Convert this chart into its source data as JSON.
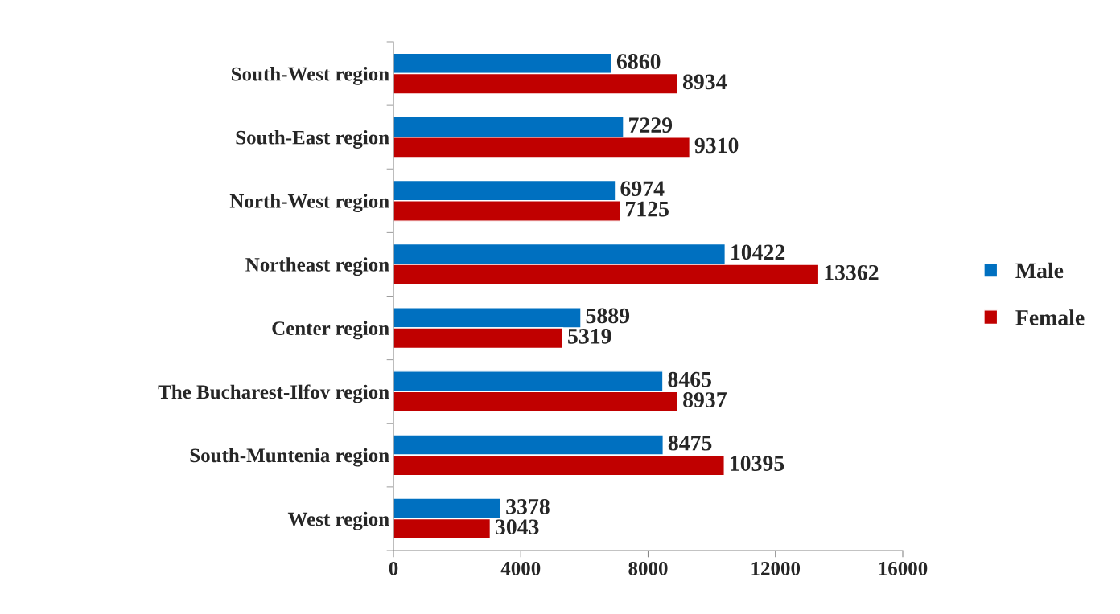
{
  "chart_data": {
    "type": "bar",
    "orientation": "horizontal",
    "categories": [
      "South-West region",
      "South-East region",
      "North-West region",
      "Northeast region",
      "Center region",
      "The Bucharest-Ilfov region",
      "South-Muntenia region",
      "West region"
    ],
    "series": [
      {
        "name": "Male",
        "color": "#0070c0",
        "values": [
          6860,
          7229,
          6974,
          10422,
          5889,
          8465,
          8475,
          3378
        ]
      },
      {
        "name": "Female",
        "color": "#c00000",
        "values": [
          8934,
          9310,
          7125,
          13362,
          5319,
          8937,
          10395,
          3043
        ]
      }
    ],
    "xlim": [
      0,
      16000
    ],
    "xticks": [
      0,
      4000,
      8000,
      12000,
      16000
    ],
    "data_labels": true,
    "legend": "right",
    "grid": false
  }
}
